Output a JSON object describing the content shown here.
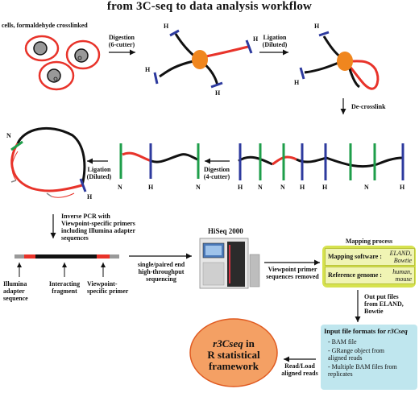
{
  "title": "from 3C-seq to data analysis workflow",
  "labels": {
    "cells": "cells, formaldehyde crosslinked",
    "digestion_6": [
      "Digestion",
      "(6-cutter)"
    ],
    "ligation_top": [
      "Ligation",
      "(Diluted)"
    ],
    "decrosslink": "De-crosslink",
    "digestion_4": [
      "Digestion",
      "(4-cutter)"
    ],
    "ligation_mid": [
      "Ligation",
      "(Diluted)"
    ],
    "inverse_pcr": [
      "Inverse PCR with",
      "Viewpoint-specific primers",
      "including Illumina adapter",
      "sequences"
    ],
    "illumina_adapter": [
      "Illumina",
      "adapter",
      "sequence"
    ],
    "interacting_fragment": [
      "Interacting",
      "fragment"
    ],
    "viewpoint_primer": [
      "Viewpoint-",
      "specific primer"
    ],
    "sequencing": [
      "single/paired end",
      "high-throughput",
      "sequencing"
    ],
    "hiseq": "HiSeq 2000",
    "primer_removed": [
      "Viewpoint primer",
      "sequences removed"
    ],
    "output_files": [
      "Out put files",
      "from ELAND,",
      "Bowtie"
    ],
    "read_load": [
      "Read/Load",
      "aligned reads"
    ],
    "N": "N",
    "H": "H"
  },
  "mapping": {
    "title": "Mapping process",
    "software_key": "Mapping software :",
    "software_val": "ELAND, Bowtie",
    "genome_key": "Reference genome :",
    "genome_val": "human, mouse"
  },
  "input_formats": {
    "title_prefix": "Input file formats for ",
    "title_pkg": "r3Cseq",
    "items": [
      "- BAM file",
      "- GRange object from",
      "  aligned reads",
      "- Multiple BAM files from",
      "  replicates"
    ]
  },
  "oval": {
    "pkg": "r3Cseq",
    "rest": [
      "in",
      "R statistical",
      "framework"
    ]
  },
  "colors": {
    "dna_red": "#e8332a",
    "dna_black": "#111111",
    "cut_blue": "#2d3a9e",
    "cut_green": "#1e9e4a",
    "nucleus_orange": "#f0861e",
    "oval_fill": "#f4a064",
    "map_box": "#d6e24e",
    "input_box": "#bfe6ee"
  }
}
